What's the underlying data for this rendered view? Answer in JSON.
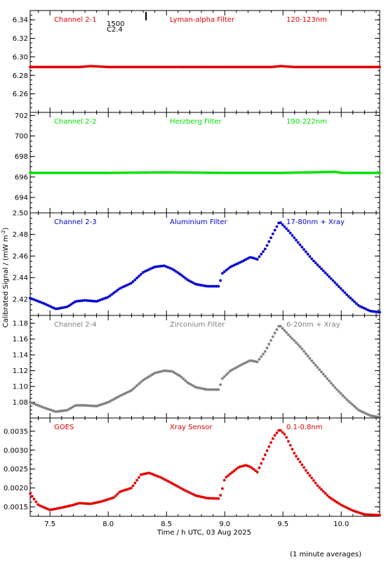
{
  "figure": {
    "ylabel_prefix": "Calibrated Signal / (mW m",
    "ylabel_sup": "-2",
    "ylabel_suffix": ")",
    "xlabel": "Time / h UTC, 03 Aug 2025",
    "footnote": "(1 minute averages)",
    "event_label_1": "1500",
    "event_label_2": "C2.4"
  },
  "chart_data": [
    {
      "type": "scatter",
      "name": "Channel 2-1",
      "filter": "Lyman-alpha Filter",
      "band": "120-123nm",
      "color": "#e00000",
      "xlim": [
        7.33,
        10.33
      ],
      "ylim": [
        6.24,
        6.35
      ],
      "yticks": [
        6.26,
        6.28,
        6.3,
        6.32,
        6.34
      ],
      "ytick_labels": [
        "6.26",
        "6.28",
        "6.30",
        "6.32",
        "6.34"
      ],
      "series": [
        {
          "x": [
            7.33,
            7.5,
            7.75,
            7.85,
            8.0,
            8.5,
            9.0,
            9.4,
            9.48,
            9.6,
            10.0,
            10.33
          ],
          "y": [
            6.289,
            6.289,
            6.289,
            6.29,
            6.289,
            6.289,
            6.289,
            6.289,
            6.29,
            6.289,
            6.289,
            6.289
          ]
        }
      ]
    },
    {
      "type": "scatter",
      "name": "Channel 2-2",
      "filter": "Herzberg Filter",
      "band": "190-222nm",
      "color": "#00e000",
      "xlim": [
        7.33,
        10.33
      ],
      "ylim": [
        692.5,
        702.3
      ],
      "yticks": [
        694,
        696,
        698,
        700,
        702
      ],
      "ytick_labels": [
        "694",
        "696",
        "698",
        "700",
        "702"
      ],
      "series": [
        {
          "x": [
            7.33,
            7.5,
            8.0,
            8.5,
            9.0,
            9.5,
            9.95,
            10.0,
            10.33
          ],
          "y": [
            696.4,
            696.4,
            696.4,
            696.45,
            696.4,
            696.4,
            696.5,
            696.4,
            696.4
          ]
        }
      ]
    },
    {
      "type": "scatter",
      "name": "Channel 2-3",
      "filter": "Aluminium Filter",
      "band": "17-80nm + Xray",
      "color": "#0000cc",
      "xlim": [
        7.33,
        10.33
      ],
      "ylim": [
        2.405,
        2.5
      ],
      "yticks": [
        2.42,
        2.44,
        2.46,
        2.48,
        2.5
      ],
      "ytick_labels": [
        "2.42",
        "2.44",
        "2.46",
        "2.48",
        "2.50"
      ],
      "series": [
        {
          "x": [
            7.33,
            7.45,
            7.55,
            7.65,
            7.72,
            7.8,
            7.9,
            8.0,
            8.1,
            8.2,
            8.3,
            8.4,
            8.48,
            8.55,
            8.62,
            8.68,
            8.75,
            8.85,
            8.95,
            8.98,
            9.05,
            9.15,
            9.22,
            9.28,
            9.35,
            9.42,
            9.47,
            9.55,
            9.65,
            9.75,
            9.85,
            9.95,
            10.05,
            10.15,
            10.25,
            10.33
          ],
          "y": [
            2.421,
            2.416,
            2.411,
            2.413,
            2.418,
            2.419,
            2.418,
            2.422,
            2.43,
            2.435,
            2.445,
            2.45,
            2.451,
            2.448,
            2.443,
            2.438,
            2.434,
            2.432,
            2.432,
            2.444,
            2.45,
            2.455,
            2.459,
            2.457,
            2.467,
            2.482,
            2.492,
            2.483,
            2.47,
            2.457,
            2.446,
            2.435,
            2.424,
            2.414,
            2.409,
            2.408
          ]
        }
      ]
    },
    {
      "type": "scatter",
      "name": "Channel 2-4",
      "filter": "Zirconium Filter",
      "band": "6-20nm + Xray",
      "color": "#808080",
      "xlim": [
        7.33,
        10.33
      ],
      "ylim": [
        1.06,
        1.19
      ],
      "yticks": [
        1.08,
        1.1,
        1.12,
        1.14,
        1.16,
        1.18
      ],
      "ytick_labels": [
        "1.08",
        "1.10",
        "1.12",
        "1.14",
        "1.16",
        "1.18"
      ],
      "series": [
        {
          "x": [
            7.33,
            7.45,
            7.55,
            7.65,
            7.72,
            7.8,
            7.9,
            8.0,
            8.1,
            8.2,
            8.3,
            8.4,
            8.48,
            8.55,
            8.62,
            8.68,
            8.75,
            8.85,
            8.95,
            8.98,
            9.05,
            9.15,
            9.22,
            9.28,
            9.35,
            9.42,
            9.47,
            9.55,
            9.65,
            9.75,
            9.85,
            9.95,
            10.05,
            10.15,
            10.25,
            10.33
          ],
          "y": [
            1.08,
            1.073,
            1.068,
            1.07,
            1.076,
            1.076,
            1.075,
            1.08,
            1.088,
            1.095,
            1.108,
            1.117,
            1.12,
            1.119,
            1.113,
            1.105,
            1.099,
            1.096,
            1.096,
            1.11,
            1.12,
            1.128,
            1.133,
            1.131,
            1.145,
            1.165,
            1.178,
            1.165,
            1.15,
            1.132,
            1.115,
            1.098,
            1.083,
            1.07,
            1.063,
            1.061
          ]
        }
      ]
    },
    {
      "type": "scatter",
      "name": "GOES",
      "filter": "Xray Sensor",
      "band": "0.1-0.8nm",
      "color": "#e00000",
      "xlim": [
        7.33,
        10.33
      ],
      "ylim": [
        0.00125,
        0.00385
      ],
      "yticks": [
        0.0015,
        0.002,
        0.0025,
        0.003,
        0.0035
      ],
      "ytick_labels": [
        "0.0015",
        "0.0020",
        "0.0025",
        "0.0030",
        "0.0035"
      ],
      "series": [
        {
          "x": [
            7.33,
            7.4,
            7.5,
            7.6,
            7.7,
            7.75,
            7.85,
            7.95,
            8.05,
            8.1,
            8.2,
            8.28,
            8.35,
            8.45,
            8.55,
            8.65,
            8.75,
            8.85,
            8.95,
            8.97,
            9.0,
            9.05,
            9.12,
            9.18,
            9.22,
            9.28,
            9.35,
            9.42,
            9.47,
            9.52,
            9.6,
            9.7,
            9.8,
            9.9,
            10.0,
            10.1,
            10.2,
            10.33
          ],
          "y": [
            0.00185,
            0.00155,
            0.00142,
            0.00148,
            0.00155,
            0.0016,
            0.00158,
            0.00165,
            0.00175,
            0.0019,
            0.002,
            0.00235,
            0.0024,
            0.00228,
            0.00212,
            0.00195,
            0.0018,
            0.00173,
            0.00172,
            0.00185,
            0.00225,
            0.00238,
            0.00255,
            0.0026,
            0.00256,
            0.00242,
            0.0029,
            0.00335,
            0.00355,
            0.0034,
            0.0029,
            0.00245,
            0.00205,
            0.00175,
            0.00155,
            0.0014,
            0.0013,
            0.00128
          ]
        }
      ]
    }
  ],
  "x_axis": {
    "xlim": [
      7.33,
      10.33
    ],
    "ticks": [
      7.5,
      8.0,
      8.5,
      9.0,
      9.5,
      10.0
    ],
    "tick_labels": [
      "7.5",
      "8.0",
      "8.5",
      "9.0",
      "9.5",
      "10.0"
    ]
  }
}
